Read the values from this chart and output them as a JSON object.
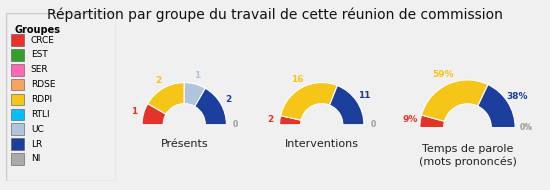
{
  "title": "Répartition par groupe du travail de cette réunion de commission",
  "groups": [
    "CRCE",
    "EST",
    "SER",
    "RDSE",
    "RDPI",
    "RTLI",
    "UC",
    "LR",
    "NI"
  ],
  "colors": [
    "#e63329",
    "#33a02c",
    "#ff69b4",
    "#f4a460",
    "#f5c518",
    "#00bfff",
    "#b0c4de",
    "#1c3f9e",
    "#aaaaaa"
  ],
  "presents": [
    1,
    0,
    0,
    0,
    2,
    0,
    1,
    2,
    0
  ],
  "interventions": [
    2,
    0,
    0,
    0,
    16,
    0,
    0,
    11,
    0
  ],
  "temps_parole": [
    9,
    0,
    0,
    0,
    59,
    0,
    0,
    38,
    0
  ],
  "presents_labels": [
    "1",
    null,
    null,
    null,
    "2",
    null,
    "1",
    "2",
    "0"
  ],
  "interventions_labels": [
    "2",
    null,
    null,
    null,
    "16",
    null,
    null,
    "11",
    "0"
  ],
  "temps_labels": [
    "9%",
    null,
    null,
    null,
    "59%",
    null,
    null,
    "38%",
    "0%"
  ],
  "chart_titles": [
    "Présents",
    "Interventions",
    "Temps de parole\n(mots prononcés)"
  ],
  "bg_color": "#f0f0f0",
  "legend_bg": "#ffffff",
  "title_fontsize": 10,
  "legend_fontsize": 6.5,
  "chart_title_fontsize": 8
}
